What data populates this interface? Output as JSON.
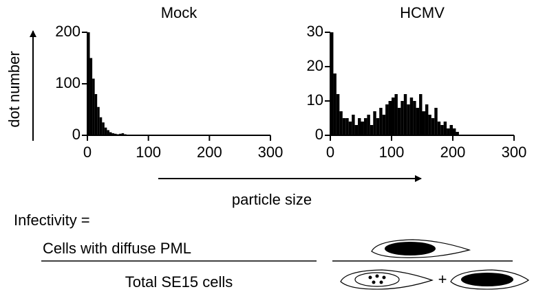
{
  "chart_data": [
    {
      "type": "histogram",
      "title": "Mock",
      "color": "#000000",
      "bins": [
        0,
        4,
        8,
        12,
        16,
        20,
        24,
        28,
        32,
        36,
        40,
        44,
        48,
        52,
        56,
        60,
        64
      ],
      "values": [
        200,
        150,
        110,
        80,
        55,
        35,
        25,
        15,
        10,
        6,
        4,
        3,
        2,
        3,
        4,
        2
      ],
      "xlim": [
        0,
        300
      ],
      "xticks": [
        0,
        100,
        200,
        300
      ],
      "ylim": [
        0,
        200
      ],
      "yticks": [
        0,
        100,
        200
      ]
    },
    {
      "type": "histogram",
      "title": "HCMV",
      "color": "#000000",
      "bins": [
        0,
        5,
        10,
        15,
        20,
        25,
        30,
        35,
        40,
        45,
        50,
        55,
        60,
        65,
        70,
        75,
        80,
        85,
        90,
        95,
        100,
        105,
        110,
        115,
        120,
        125,
        130,
        135,
        140,
        145,
        150,
        155,
        160,
        165,
        170,
        175,
        180,
        185,
        190,
        195,
        200,
        205,
        210
      ],
      "values": [
        30,
        18,
        12,
        7,
        5,
        5,
        4,
        6,
        3,
        5,
        4,
        5,
        6,
        3,
        7,
        5,
        8,
        6,
        9,
        10,
        11,
        12,
        8,
        10,
        12,
        9,
        11,
        10,
        8,
        12,
        7,
        9,
        6,
        5,
        8,
        4,
        3,
        4,
        2,
        3,
        2,
        1
      ],
      "xlim": [
        0,
        300
      ],
      "xticks": [
        0,
        100,
        200,
        300
      ],
      "ylim": [
        0,
        30
      ],
      "yticks": [
        0,
        10,
        20,
        30
      ]
    }
  ],
  "y_axis_label": "dot number",
  "x_axis_label": "particle size",
  "formula": {
    "label": "Infectivity  =",
    "numerator": "Cells with diffuse PML",
    "denominator": "Total SE15 cells",
    "plus": "+"
  }
}
